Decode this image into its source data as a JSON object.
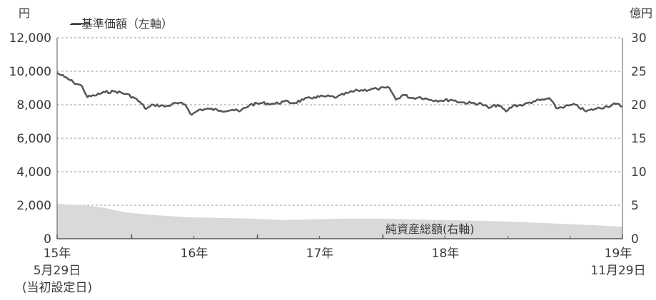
{
  "chart_data": {
    "type": "line",
    "left_unit": "円",
    "right_unit": "億円",
    "legend_label": "―基準価額（左軸）",
    "area_label": "純資産総額(右軸)",
    "left_ticks": [
      "12,000",
      "10,000",
      "8,000",
      "6,000",
      "4,000",
      "2,000",
      "0"
    ],
    "right_ticks": [
      "30",
      "25",
      "20",
      "15",
      "10",
      "5",
      "0"
    ],
    "ylim_left": [
      0,
      12000
    ],
    "ylim_right": [
      0,
      30
    ],
    "grid": "dashed horizontal",
    "x_labels": {
      "start": [
        "15年",
        "5月29日",
        "(当初設定日)"
      ],
      "y16": "16年",
      "y17": "17年",
      "y18": "18年",
      "end": [
        "19年",
        "11月29日"
      ]
    },
    "x_range": [
      "2015-05-29",
      "2019-11-29"
    ],
    "series": [
      {
        "name": "基準価額",
        "axis": "left",
        "style": "line",
        "color": "#555555",
        "points": [
          [
            "2015-05-29",
            9900
          ],
          [
            "2015-06-20",
            9650
          ],
          [
            "2015-07-15",
            9350
          ],
          [
            "2015-08-10",
            9100
          ],
          [
            "2015-08-25",
            8450
          ],
          [
            "2015-09-15",
            8550
          ],
          [
            "2015-10-15",
            8750
          ],
          [
            "2015-11-15",
            8800
          ],
          [
            "2015-12-15",
            8650
          ],
          [
            "2016-01-10",
            8400
          ],
          [
            "2016-01-30",
            8050
          ],
          [
            "2016-02-12",
            7750
          ],
          [
            "2016-03-05",
            8000
          ],
          [
            "2016-04-10",
            7900
          ],
          [
            "2016-05-10",
            8100
          ],
          [
            "2016-06-05",
            8000
          ],
          [
            "2016-06-24",
            7400
          ],
          [
            "2016-07-15",
            7700
          ],
          [
            "2016-08-15",
            7750
          ],
          [
            "2016-09-15",
            7650
          ],
          [
            "2016-10-20",
            7700
          ],
          [
            "2016-11-10",
            7600
          ],
          [
            "2016-12-10",
            8000
          ],
          [
            "2017-01-15",
            8100
          ],
          [
            "2017-02-20",
            8050
          ],
          [
            "2017-03-20",
            8200
          ],
          [
            "2017-04-15",
            8100
          ],
          [
            "2017-05-15",
            8300
          ],
          [
            "2017-06-15",
            8450
          ],
          [
            "2017-07-20",
            8500
          ],
          [
            "2017-08-20",
            8450
          ],
          [
            "2017-09-20",
            8700
          ],
          [
            "2017-10-20",
            8850
          ],
          [
            "2017-12-15",
            8950
          ],
          [
            "2018-01-20",
            9000
          ],
          [
            "2018-02-08",
            8300
          ],
          [
            "2018-03-01",
            8600
          ],
          [
            "2018-03-25",
            8400
          ],
          [
            "2018-04-20",
            8450
          ],
          [
            "2018-05-20",
            8300
          ],
          [
            "2018-06-20",
            8250
          ],
          [
            "2018-07-20",
            8300
          ],
          [
            "2018-08-15",
            8150
          ],
          [
            "2018-09-15",
            8100
          ],
          [
            "2018-10-15",
            8050
          ],
          [
            "2018-11-05",
            7800
          ],
          [
            "2018-12-01",
            8000
          ],
          [
            "2018-12-25",
            7600
          ],
          [
            "2019-01-15",
            7950
          ],
          [
            "2019-02-15",
            8000
          ],
          [
            "2019-03-15",
            8200
          ],
          [
            "2019-04-15",
            8300
          ],
          [
            "2019-04-30",
            8400
          ],
          [
            "2019-05-20",
            7800
          ],
          [
            "2019-06-15",
            7900
          ],
          [
            "2019-07-15",
            8000
          ],
          [
            "2019-08-15",
            7600
          ],
          [
            "2019-09-10",
            7750
          ],
          [
            "2019-10-15",
            7900
          ],
          [
            "2019-11-10",
            8050
          ],
          [
            "2019-11-29",
            7900
          ]
        ]
      },
      {
        "name": "純資産総額",
        "axis": "right",
        "style": "area",
        "color": "#d9d9d9",
        "points": [
          [
            "2015-05-29",
            5.2
          ],
          [
            "2015-08-15",
            5.0
          ],
          [
            "2015-10-15",
            4.6
          ],
          [
            "2015-12-15",
            3.9
          ],
          [
            "2016-03-15",
            3.5
          ],
          [
            "2016-06-15",
            3.2
          ],
          [
            "2016-09-15",
            3.1
          ],
          [
            "2016-12-15",
            3.0
          ],
          [
            "2017-03-15",
            2.8
          ],
          [
            "2017-06-15",
            2.9
          ],
          [
            "2017-09-15",
            3.0
          ],
          [
            "2017-12-15",
            3.0
          ],
          [
            "2018-03-15",
            2.9
          ],
          [
            "2018-06-15",
            2.8
          ],
          [
            "2018-09-15",
            2.7
          ],
          [
            "2018-12-15",
            2.6
          ],
          [
            "2019-03-15",
            2.4
          ],
          [
            "2019-06-15",
            2.2
          ],
          [
            "2019-09-15",
            2.0
          ],
          [
            "2019-11-29",
            1.8
          ]
        ]
      }
    ]
  }
}
